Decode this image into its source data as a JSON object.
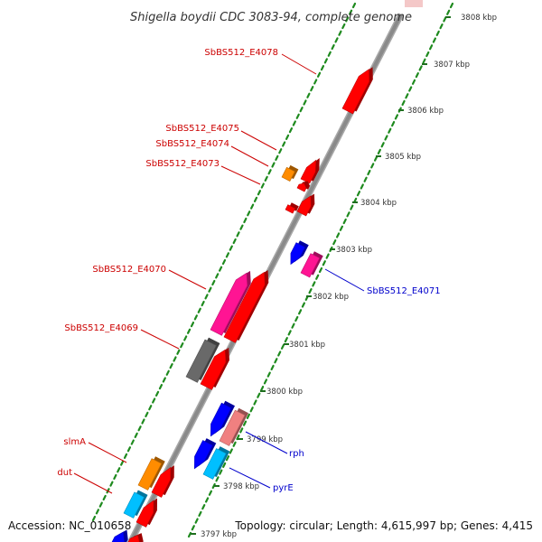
{
  "title": "Shigella boydii CDC 3083-94, complete genome",
  "footer": {
    "accession": "Accession: NC_010658",
    "topology": "Topology: circular; Length: 4,615,997 bp; Genes: 4,415"
  },
  "colors": {
    "backbone": "#8a8a8a",
    "dot_track": "#1e8a1e",
    "label_forward": "#cc0000",
    "label_reverse": "#0000cc"
  },
  "axis": {
    "unit": "kbp",
    "ticks": [
      "3797 kbp",
      "3798 kbp",
      "3799 kbp",
      "3800 kbp",
      "3801 kbp",
      "3802 kbp",
      "3803 kbp",
      "3804 kbp",
      "3805 kbp",
      "3806 kbp",
      "3807 kbp",
      "3808 kbp"
    ]
  },
  "genes": [
    {
      "id": "g1",
      "strand": "forward",
      "color": "#ff0000",
      "label": "SbBS512_E4078"
    },
    {
      "id": "g2",
      "strand": "forward",
      "color": "#ff0000",
      "label": ""
    },
    {
      "id": "g3",
      "strand": "forward",
      "color": "#ff0000",
      "label": ""
    },
    {
      "id": "g4",
      "strand": "forward",
      "color": "#ff8c00",
      "label": "SbBS512_E4075"
    },
    {
      "id": "g5",
      "strand": "forward",
      "color": "#ff0000",
      "label": "SbBS512_E4074"
    },
    {
      "id": "g6",
      "strand": "forward",
      "color": "#ff0000",
      "label": "SbBS512_E4073"
    },
    {
      "id": "g7",
      "strand": "reverse",
      "color": "#0000ff",
      "label": ""
    },
    {
      "id": "g8",
      "strand": "reverse",
      "color": "#ff1493",
      "label": "SbBS512_E4071"
    },
    {
      "id": "g9",
      "strand": "forward",
      "color": "#ff1493",
      "label": "SbBS512_E4070"
    },
    {
      "id": "g10",
      "strand": "forward",
      "color": "#ff0000",
      "label": ""
    },
    {
      "id": "g11",
      "strand": "forward",
      "color": "#696969",
      "label": "SbBS512_E4069"
    },
    {
      "id": "g12",
      "strand": "forward",
      "color": "#ff0000",
      "label": ""
    },
    {
      "id": "g13",
      "strand": "reverse",
      "color": "#0000ff",
      "label": ""
    },
    {
      "id": "g14",
      "strand": "reverse",
      "color": "#f08080",
      "label": "rph"
    },
    {
      "id": "g15",
      "strand": "reverse",
      "color": "#0000ff",
      "label": ""
    },
    {
      "id": "g16",
      "strand": "reverse",
      "color": "#00bfff",
      "label": "pyrE"
    },
    {
      "id": "g17",
      "strand": "forward",
      "color": "#ff8c00",
      "label": "slmA"
    },
    {
      "id": "g18",
      "strand": "forward",
      "color": "#ff0000",
      "label": ""
    },
    {
      "id": "g19",
      "strand": "forward",
      "color": "#00bfff",
      "label": "dut"
    },
    {
      "id": "g20",
      "strand": "forward",
      "color": "#ff0000",
      "label": ""
    },
    {
      "id": "g21",
      "strand": "forward",
      "color": "#0000ff",
      "label": ""
    },
    {
      "id": "g22",
      "strand": "forward",
      "color": "#ff0000",
      "label": ""
    }
  ]
}
